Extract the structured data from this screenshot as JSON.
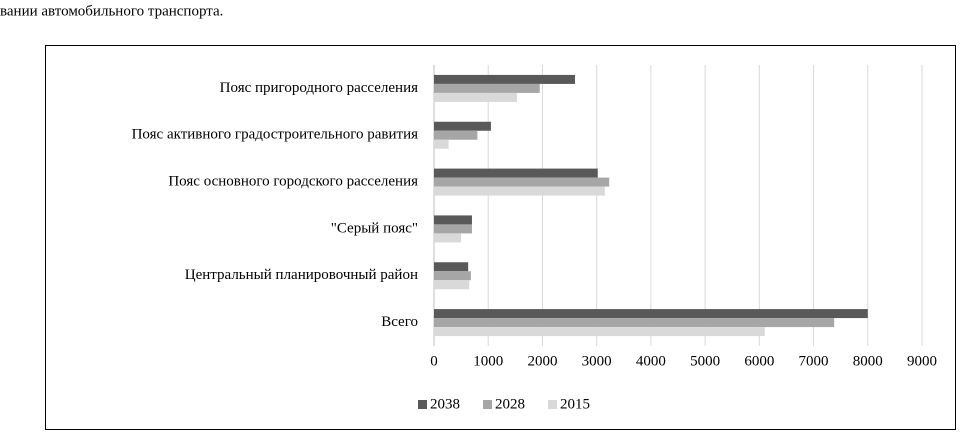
{
  "page_text": "вании автомобильного транспорта.",
  "chart_data": {
    "type": "hbar",
    "categories": [
      "Пояс пригородного расселения",
      "Пояс активного градостроительного равития",
      "Пояс основного городского расселения",
      "\"Серый пояс\"",
      "Центральный планировочный район",
      "Всего"
    ],
    "series": [
      {
        "name": "2038",
        "color": "#595959",
        "values": [
          2600,
          1050,
          3020,
          700,
          630,
          8000
        ]
      },
      {
        "name": "2028",
        "color": "#a6a6a6",
        "values": [
          1950,
          800,
          3230,
          700,
          680,
          7380
        ]
      },
      {
        "name": "2015",
        "color": "#d9d9d9",
        "values": [
          1530,
          270,
          3150,
          500,
          650,
          6100
        ]
      }
    ],
    "xlim": [
      0,
      9000
    ],
    "xticks": [
      0,
      1000,
      2000,
      3000,
      4000,
      5000,
      6000,
      7000,
      8000,
      9000
    ],
    "grid": true,
    "legend": "bottom"
  }
}
